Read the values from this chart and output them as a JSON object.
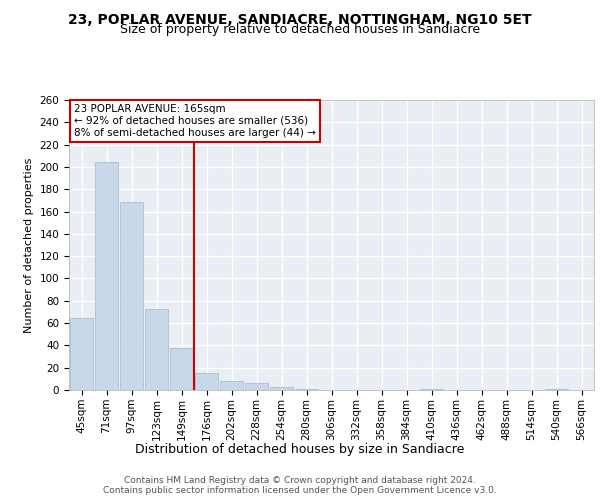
{
  "title": "23, POPLAR AVENUE, SANDIACRE, NOTTINGHAM, NG10 5ET",
  "subtitle": "Size of property relative to detached houses in Sandiacre",
  "xlabel": "Distribution of detached houses by size in Sandiacre",
  "ylabel": "Number of detached properties",
  "bar_labels": [
    "45sqm",
    "71sqm",
    "97sqm",
    "123sqm",
    "149sqm",
    "176sqm",
    "202sqm",
    "228sqm",
    "254sqm",
    "280sqm",
    "306sqm",
    "332sqm",
    "358sqm",
    "384sqm",
    "410sqm",
    "436sqm",
    "462sqm",
    "488sqm",
    "514sqm",
    "540sqm",
    "566sqm"
  ],
  "bar_values": [
    65,
    204,
    169,
    73,
    38,
    15,
    8,
    6,
    3,
    1,
    0,
    0,
    0,
    0,
    1,
    0,
    0,
    0,
    0,
    1,
    0
  ],
  "bar_color": "#c8d8e8",
  "bar_edgecolor": "#a0b8cc",
  "property_label": "23 POPLAR AVENUE: 165sqm",
  "annotation_line1": "← 92% of detached houses are smaller (536)",
  "annotation_line2": "8% of semi-detached houses are larger (44) →",
  "vline_color": "#cc0000",
  "vline_bar_index": 4.5,
  "annotation_box_color": "#cc0000",
  "background_color": "#e8eef4",
  "grid_color": "#ffffff",
  "title_fontsize": 10,
  "subtitle_fontsize": 9,
  "ylabel_fontsize": 8,
  "xlabel_fontsize": 9,
  "tick_fontsize": 7.5,
  "annotation_fontsize": 7.5,
  "footer_text": "Contains HM Land Registry data © Crown copyright and database right 2024.\nContains public sector information licensed under the Open Government Licence v3.0.",
  "ylim": [
    0,
    260
  ],
  "yticks": [
    0,
    20,
    40,
    60,
    80,
    100,
    120,
    140,
    160,
    180,
    200,
    220,
    240,
    260
  ]
}
